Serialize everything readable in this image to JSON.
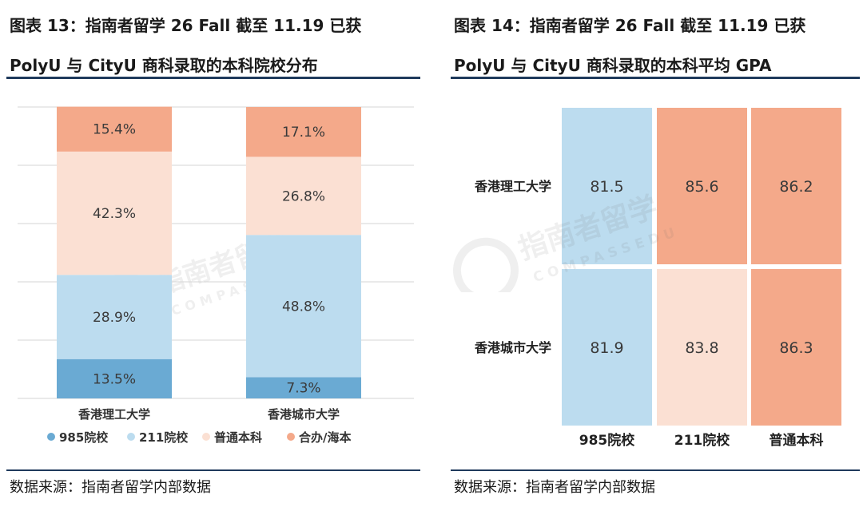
{
  "left": {
    "title_line1": "图表 13：指南者留学 26 Fall 截至 11.19 已获",
    "title_line2": "PolyU 与 CityU 商科录取的本科院校分布",
    "source": "数据来源：指南者留学内部数据"
  },
  "right": {
    "title_line1": "图表 14：指南者留学 26 Fall 截至 11.19 已获",
    "title_line2": "PolyU 与 CityU 商科录取的本科平均 GPA",
    "source": "数据来源：指南者留学内部数据"
  },
  "watermark": {
    "cn": "指南者留学",
    "en": "COMPASSEDU"
  },
  "colors": {
    "c985": "#6aaad3",
    "c211": "#bcdcef",
    "cregular": "#fbe0d3",
    "cjoint": "#f4a98a",
    "heat_blue": "#bcdcef",
    "heat_light": "#fbe0d3",
    "heat_dark": "#f4a98a",
    "text_dark": "#3a3a3a",
    "grid": "#d6d6d6",
    "navy": "#1f3a5c"
  },
  "chart_data": [
    {
      "type": "bar",
      "stacked": true,
      "orientation": "vertical",
      "unit": "%",
      "categories": [
        "香港理工大学",
        "香港城市大学"
      ],
      "series": [
        {
          "name": "985院校",
          "values": [
            13.5,
            7.3
          ],
          "labels": [
            "13.5%",
            "7.3%"
          ],
          "color": "#6aaad3"
        },
        {
          "name": "211院校",
          "values": [
            28.9,
            48.8
          ],
          "labels": [
            "28.9%",
            "48.8%"
          ],
          "color": "#bcdcef"
        },
        {
          "name": "普通本科",
          "values": [
            42.3,
            26.8
          ],
          "labels": [
            "42.3%",
            "26.8%"
          ],
          "color": "#fbe0d3"
        },
        {
          "name": "合办/海本",
          "values": [
            15.4,
            17.1
          ],
          "labels": [
            "15.4%",
            "17.1%"
          ],
          "color": "#f4a98a"
        }
      ],
      "ylim": [
        0,
        100
      ],
      "grid": true,
      "legend_position": "bottom"
    },
    {
      "type": "heatmap",
      "rows": [
        "香港理工大学",
        "香港城市大学"
      ],
      "columns": [
        "985院校",
        "211院校",
        "普通本科"
      ],
      "values": [
        [
          81.5,
          85.6,
          86.2
        ],
        [
          81.9,
          83.8,
          86.3
        ]
      ],
      "labels": [
        [
          "81.5",
          "85.6",
          "86.2"
        ],
        [
          "81.9",
          "83.8",
          "86.3"
        ]
      ],
      "cell_colors": [
        [
          "#bcdcef",
          "#f4a98a",
          "#f4a98a"
        ],
        [
          "#bcdcef",
          "#fbe0d3",
          "#f4a98a"
        ]
      ]
    }
  ]
}
